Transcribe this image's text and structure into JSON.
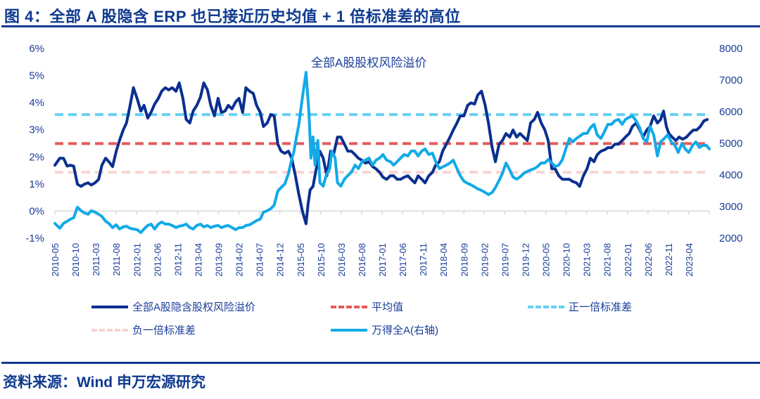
{
  "figure": {
    "title": "图 4：全部 A 股隐含 ERP 也已接近历史均值  + 1 倍标准差的高位",
    "source": "资料来源：Wind  申万宏源研究"
  },
  "chart_data": {
    "type": "line",
    "title": "全部A股股权风险溢价",
    "left_axis": {
      "ylim": [
        -1,
        6
      ],
      "ticks": [
        "-1%",
        "0%",
        "1%",
        "2%",
        "3%",
        "4%",
        "5%",
        "6%"
      ],
      "unit": "%"
    },
    "right_axis": {
      "ylim": [
        2000,
        8000
      ],
      "ticks": [
        "2000",
        "3000",
        "4000",
        "5000",
        "6000",
        "7000",
        "8000"
      ]
    },
    "x_ticks": [
      "2010-05",
      "2010-10",
      "2011-03",
      "2011-08",
      "2012-01",
      "2012-06",
      "2012-11",
      "2013-04",
      "2013-09",
      "2014-02",
      "2014-07",
      "2014-12",
      "2015-05",
      "2015-10",
      "2016-03",
      "2016-08",
      "2017-01",
      "2017-06",
      "2017-11",
      "2018-04",
      "2018-09",
      "2019-02",
      "2019-07",
      "2019-12",
      "2020-05",
      "2020-10",
      "2021-03",
      "2021-08",
      "2022-01",
      "2022-06",
      "2022-11",
      "2023-04"
    ],
    "x_start": "2010-05",
    "x_end_month_index": 160,
    "grid": false,
    "legend_placement": "bottom",
    "colors": {
      "erp": "#0a2f8f",
      "mean": "#e55a5a",
      "plus1sd": "#66d0f5",
      "minus1sd": "#f8d3d3",
      "index": "#12aae8"
    },
    "mean": 2.49,
    "plus_1sd": 3.56,
    "minus_1sd": 1.43,
    "series": [
      {
        "name": "全部A股隐含股权风险溢价",
        "axis": "left",
        "unit": "%",
        "month_index": [
          0,
          1.2,
          2.1,
          3,
          3.8,
          4.6,
          5.5,
          6.4,
          7.2,
          8.1,
          8.9,
          9.8,
          10.7,
          11.5,
          12.4,
          13.2,
          14.1,
          15,
          15.8,
          16.7,
          17.5,
          18.4,
          19.2,
          20.1,
          21,
          21.8,
          22.7,
          23.5,
          24.4,
          25.3,
          26.1,
          27,
          27.8,
          28.7,
          29.6,
          30.4,
          31.3,
          32.1,
          33,
          33.8,
          34.7,
          35.6,
          36.4,
          37.3,
          38.1,
          39,
          39.9,
          40.7,
          41.6,
          42.4,
          43.3,
          44.2,
          45,
          45.9,
          46.7,
          47.6,
          48.5,
          49.3,
          50.2,
          51,
          51.9,
          52.8,
          53.6,
          54.5,
          55.3,
          56.2,
          57.1,
          57.9,
          58.8,
          59.6,
          60.5,
          61.4,
          61.9,
          62.4,
          63.1,
          63.9,
          64.8,
          65.6,
          66.5,
          67.4,
          68.2,
          69.1,
          69.9,
          70.8,
          71.6,
          72.5,
          73.4,
          74.2,
          75.1,
          75.9,
          76.8,
          77.7,
          78.5,
          79.4,
          80.2,
          81.1,
          82,
          82.8,
          83.7,
          84.5,
          85.4,
          86.3,
          87.1,
          88,
          88.8,
          89.7,
          90.5,
          91.4,
          92.3,
          93.1,
          94,
          94.8,
          95.7,
          96.6,
          97.4,
          98.3,
          99.1,
          100,
          100.9,
          101.7,
          102.6,
          103.4,
          104.3,
          105.2,
          106,
          106.9,
          107.7,
          108.6,
          109.4,
          110.3,
          111.2,
          112,
          112.9,
          113.7,
          114.6,
          115.5,
          116.3,
          117.2,
          118,
          118.9,
          119.8,
          120.6,
          121.5,
          122.3,
          123.2,
          124.1,
          124.9,
          125.8,
          126.6,
          127.5,
          128.3,
          129.2,
          130.1,
          130.9,
          131.8,
          132.6,
          133.5,
          134.4,
          135.2,
          136.1,
          136.9,
          137.8,
          138.7,
          139.5,
          140.4,
          141.2,
          142.1,
          143,
          143.8,
          144.7,
          145.5,
          146.4,
          147.3,
          148.1,
          148.8,
          149.5,
          150.1,
          150.9,
          151.8,
          152.6,
          153.5,
          154.4,
          155.2,
          156.1,
          156.9,
          157.8,
          158.7,
          159.5,
          160
        ],
        "values": [
          1.69,
          1.95,
          1.95,
          1.66,
          1.69,
          1.66,
          0.99,
          0.91,
          0.99,
          1.04,
          0.96,
          1.04,
          1.17,
          1.69,
          1.95,
          1.82,
          1.64,
          2.21,
          2.6,
          2.99,
          3.25,
          3.9,
          4.55,
          4.16,
          3.69,
          3.9,
          3.43,
          3.64,
          3.95,
          4.16,
          4.42,
          4.55,
          4.47,
          4.55,
          4.42,
          4.73,
          4.16,
          3.38,
          3.25,
          3.69,
          3.9,
          4.21,
          4.73,
          4.47,
          3.9,
          3.51,
          4.16,
          3.64,
          3.69,
          3.9,
          3.77,
          4.03,
          4.16,
          3.64,
          4.55,
          4.42,
          4.34,
          3.9,
          3.64,
          3.12,
          3.25,
          3.56,
          3.51,
          2.47,
          2.21,
          2.13,
          2.21,
          1.95,
          1.3,
          0.65,
          0.0,
          -0.47,
          0.26,
          0.78,
          0.91,
          1.56,
          2.21,
          1.95,
          1.3,
          2.21,
          2.13,
          2.73,
          2.73,
          2.47,
          2.21,
          2.21,
          2.08,
          1.95,
          1.87,
          1.77,
          1.82,
          1.64,
          1.56,
          1.43,
          1.25,
          1.17,
          1.3,
          1.3,
          1.17,
          1.17,
          1.25,
          1.3,
          1.17,
          1.04,
          1.3,
          1.17,
          1.04,
          1.3,
          1.43,
          1.69,
          1.82,
          2.21,
          2.47,
          2.73,
          2.99,
          3.25,
          3.51,
          3.51,
          3.9,
          3.99,
          3.95,
          4.29,
          4.42,
          3.9,
          3.25,
          2.34,
          1.82,
          2.47,
          2.6,
          2.86,
          2.73,
          2.99,
          2.73,
          2.86,
          2.73,
          2.6,
          3.25,
          3.38,
          3.64,
          3.25,
          2.99,
          2.6,
          1.56,
          1.56,
          1.3,
          1.17,
          1.17,
          1.17,
          1.09,
          1.04,
          0.91,
          1.3,
          1.56,
          1.95,
          1.82,
          2.08,
          2.21,
          2.26,
          2.34,
          2.34,
          2.47,
          2.47,
          2.6,
          2.73,
          2.86,
          3.12,
          3.25,
          2.99,
          2.73,
          2.99,
          3.12,
          3.51,
          3.25,
          3.38,
          3.69,
          3.12,
          2.86,
          2.73,
          2.6,
          2.73,
          2.65,
          2.73,
          2.86,
          2.99,
          2.99,
          3.12,
          3.33,
          3.38
        ]
      },
      {
        "name": "万得全A(右轴)",
        "axis": "right",
        "month_index": [
          0,
          1.2,
          2.1,
          3,
          3.8,
          4.6,
          5.5,
          6.4,
          7.2,
          8.1,
          8.9,
          9.8,
          10.7,
          11.5,
          12.4,
          13.2,
          14.1,
          15,
          15.8,
          16.7,
          17.5,
          18.4,
          19.2,
          20.1,
          21,
          21.8,
          22.7,
          23.5,
          24.4,
          25.3,
          26.1,
          27,
          27.8,
          28.7,
          29.6,
          30.4,
          31.3,
          32.1,
          33,
          33.8,
          34.7,
          35.6,
          36.4,
          37.3,
          38.1,
          39,
          39.9,
          40.7,
          41.6,
          42.4,
          43.3,
          44.2,
          45,
          45.9,
          46.7,
          47.6,
          48.5,
          49.3,
          50.2,
          51,
          51.9,
          52.8,
          53.6,
          54.5,
          55.3,
          56.2,
          57.1,
          57.9,
          58.4,
          59.1,
          59.6,
          60.5,
          61.4,
          62.1,
          62.6,
          63.1,
          63.6,
          64.3,
          64.8,
          65.6,
          66.3,
          67.2,
          67.7,
          68.5,
          69.1,
          69.9,
          70.8,
          71.6,
          72.5,
          73.4,
          74.2,
          75.1,
          75.9,
          76.8,
          77.7,
          78.5,
          79.4,
          80.2,
          81.1,
          82,
          82.8,
          83.7,
          84.5,
          85.4,
          86.3,
          87.1,
          88,
          88.8,
          89.7,
          90.5,
          91.4,
          92.3,
          93.1,
          94,
          95.7,
          96.6,
          97.4,
          98.3,
          99.1,
          100,
          100.9,
          101.7,
          102.6,
          103.4,
          104.3,
          105.2,
          106,
          106.9,
          107.7,
          108.6,
          109.4,
          110.3,
          111.2,
          112,
          112.9,
          113.7,
          114.6,
          115.5,
          116.3,
          117.2,
          118,
          118.9,
          119.8,
          120.6,
          121.5,
          122.3,
          123.2,
          124.1,
          124.9,
          125.8,
          126.6,
          127.5,
          128.3,
          129.2,
          130.1,
          130.9,
          131.8,
          132.6,
          133.5,
          134.4,
          135.2,
          136.1,
          136.9,
          137.8,
          138.7,
          139.5,
          140.4,
          141.2,
          142.1,
          143,
          143.8,
          144.7,
          145.5,
          146.4,
          147.3,
          148.1,
          149,
          149.8,
          150.7,
          151.6,
          152.4,
          153.3,
          154.1,
          155,
          155.9,
          156.7,
          157.6,
          158.4,
          159.3,
          160
        ],
        "values": [
          2467,
          2311,
          2467,
          2533,
          2600,
          2644,
          2978,
          2867,
          2800,
          2756,
          2867,
          2822,
          2756,
          2689,
          2533,
          2467,
          2333,
          2422,
          2289,
          2356,
          2378,
          2311,
          2289,
          2267,
          2178,
          2289,
          2400,
          2444,
          2289,
          2444,
          2511,
          2444,
          2444,
          2400,
          2333,
          2378,
          2400,
          2444,
          2333,
          2289,
          2400,
          2444,
          2356,
          2400,
          2333,
          2378,
          2400,
          2333,
          2378,
          2400,
          2333,
          2267,
          2333,
          2333,
          2400,
          2422,
          2489,
          2556,
          2600,
          2822,
          2867,
          2933,
          3044,
          3489,
          3600,
          3711,
          4044,
          4489,
          4711,
          5222,
          5556,
          6444,
          7244,
          5978,
          4533,
          5200,
          4311,
          5089,
          3756,
          3644,
          3978,
          4200,
          4756,
          4533,
          3756,
          3644,
          3867,
          3978,
          4089,
          4311,
          4200,
          4422,
          4467,
          4533,
          4311,
          4467,
          4533,
          4644,
          4467,
          4422,
          4311,
          4422,
          4533,
          4644,
          4600,
          4756,
          4756,
          4600,
          4756,
          4822,
          4644,
          4689,
          4422,
          4200,
          4311,
          4378,
          4467,
          4200,
          3978,
          3800,
          3733,
          3689,
          3622,
          3556,
          3511,
          3444,
          3378,
          3444,
          3600,
          3822,
          4044,
          4378,
          4156,
          3933,
          3867,
          3933,
          4044,
          4111,
          4156,
          4200,
          4267,
          4378,
          4378,
          4489,
          4378,
          4267,
          4311,
          4489,
          4822,
          5156,
          5044,
          5156,
          5222,
          5311,
          5311,
          5489,
          5600,
          5267,
          5156,
          5378,
          5600,
          5600,
          5711,
          5756,
          5600,
          5756,
          5822,
          5867,
          5711,
          5489,
          5156,
          5044,
          5533,
          5267,
          4600,
          5044,
          5156,
          5267,
          5044,
          4933,
          4711,
          5000,
          4822,
          4711,
          4933,
          5044,
          4867,
          4933,
          4933,
          4822,
          4933,
          4822,
          4644
        ]
      }
    ],
    "legend": [
      {
        "key": "erp",
        "label": "全部A股隐含股权风险溢价",
        "style": "solid"
      },
      {
        "key": "mean",
        "label": "平均值",
        "style": "dashed"
      },
      {
        "key": "plus1sd",
        "label": "正一倍标准差",
        "style": "dashed"
      },
      {
        "key": "minus1sd",
        "label": "负一倍标准差",
        "style": "dashed"
      },
      {
        "key": "index",
        "label": "万得全A(右轴)",
        "style": "solid"
      }
    ]
  }
}
